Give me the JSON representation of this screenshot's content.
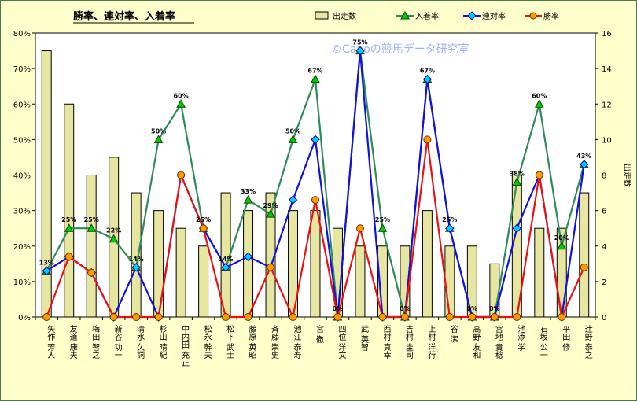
{
  "chart_data": {
    "type": "bar-line",
    "title": "勝率、連対率、入着率",
    "watermark": "©Canoの競馬データ研究室",
    "y2label": "出走数",
    "y_left": {
      "min": 0,
      "max": 80,
      "step": 10,
      "ticks": [
        "0%",
        "10%",
        "20%",
        "30%",
        "40%",
        "50%",
        "60%",
        "70%",
        "80%"
      ]
    },
    "y_right": {
      "min": 0,
      "max": 16,
      "step": 2,
      "ticks": [
        "0",
        "2",
        "4",
        "6",
        "8",
        "10",
        "12",
        "14",
        "16"
      ]
    },
    "categories": [
      "矢作 芳人",
      "友道 康夫",
      "梅田 智之",
      "新谷 功一",
      "清水 久詞",
      "杉山 晴紀",
      "中内田 充正",
      "松永 幹夫",
      "松下 武士",
      "藤原 英昭",
      "斉藤 崇史",
      "池江 泰寿",
      "宮 徹",
      "四位 洋文",
      "武 英智",
      "西村 真幸",
      "吉村 圭司",
      "上村 洋行",
      "谷 潔",
      "高野 友和",
      "宮地 貴稔",
      "池添 学",
      "石坂 公一",
      "平田 修",
      "辻野 泰之"
    ],
    "series": [
      {
        "name": "出走数",
        "kind": "bar",
        "axis": "right",
        "color": "#e6e6a0",
        "values": [
          15,
          12,
          8,
          9,
          7,
          6,
          5,
          4,
          7,
          6,
          7,
          6,
          6,
          5,
          4,
          4,
          4,
          6,
          4,
          4,
          3,
          8,
          5,
          5,
          7
        ]
      },
      {
        "name": "入着率",
        "kind": "line",
        "axis": "left",
        "color": "#2e8b57",
        "marker": "triangle",
        "marker_color": "#00cc00",
        "values": [
          13,
          25,
          25,
          22,
          14,
          50,
          60,
          25,
          14,
          33,
          29,
          50,
          67,
          0,
          75,
          25,
          0,
          67,
          25,
          0,
          0,
          38,
          60,
          20,
          43
        ],
        "labels": [
          "13%",
          "25%",
          "25%",
          "22%",
          "14%",
          "50%",
          "60%",
          "25%",
          "14%",
          "33%",
          "29%",
          "50%",
          "67%",
          "0%",
          "75%",
          "25%",
          "0%",
          "67%",
          "25%",
          "0%",
          "0%",
          "38%",
          "60%",
          "20%",
          "43%"
        ]
      },
      {
        "name": "連対率",
        "kind": "line",
        "axis": "left",
        "color": "#1010e0",
        "marker": "diamond",
        "marker_color": "#00ccff",
        "values": [
          13,
          17,
          12.5,
          0,
          14,
          0,
          40,
          25,
          14,
          17,
          14,
          33,
          50,
          0,
          75,
          0,
          0,
          67,
          25,
          0,
          0,
          25,
          40,
          0,
          43
        ]
      },
      {
        "name": "勝率",
        "kind": "line",
        "axis": "left",
        "color": "#ee1111",
        "marker": "circle",
        "marker_color": "#ff9900",
        "values": [
          0,
          17,
          12.5,
          0,
          0,
          0,
          40,
          25,
          0,
          0,
          14,
          0,
          33,
          0,
          25,
          0,
          0,
          50,
          0,
          0,
          0,
          0,
          40,
          0,
          14
        ]
      }
    ],
    "legend": "top-right",
    "grid": false
  }
}
